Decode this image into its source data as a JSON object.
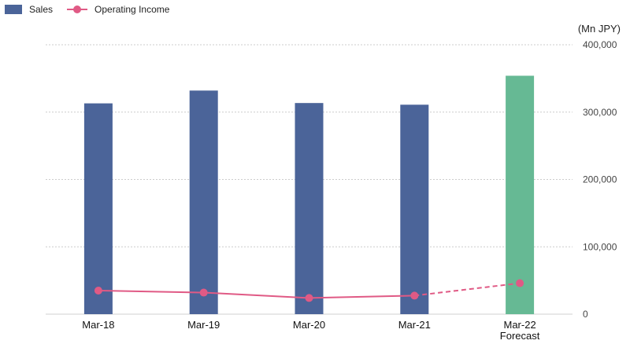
{
  "colors": {
    "sales": "#4b6499",
    "forecast": "#66b994",
    "operating_income": "#e05a85",
    "grid": "#cccccc"
  },
  "legend": {
    "sales_label": "Sales",
    "operating_income_label": "Operating Income"
  },
  "unit_label": "(Mn JPY)",
  "chart_data": {
    "type": "bar",
    "categories": [
      "Mar-18",
      "Mar-19",
      "Mar-20",
      "Mar-21",
      "Mar-22\nForecast"
    ],
    "series": [
      {
        "name": "Sales",
        "type": "bar",
        "values": [
          313000,
          332000,
          313500,
          311000,
          354000
        ]
      },
      {
        "name": "Operating Income",
        "type": "line",
        "values": [
          35000,
          32000,
          24000,
          27500,
          46000
        ]
      }
    ],
    "forecast_index": 4,
    "yticks": [
      "0",
      "100,000",
      "200,000",
      "300,000",
      "400,000"
    ],
    "ylim": [
      0,
      400000
    ],
    "grid": true,
    "legend_position": "top-left",
    "yaxis_position": "right"
  }
}
